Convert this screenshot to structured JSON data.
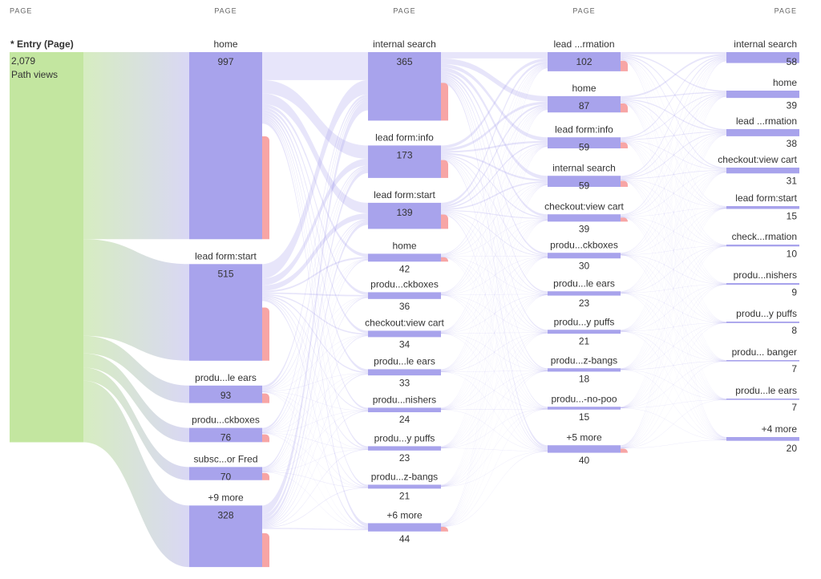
{
  "chart_data": {
    "type": "flow",
    "entry": {
      "header": "PAGE",
      "label": "* Entry (Page)",
      "value": 2079,
      "value_label": "2,079",
      "unit": "Path views"
    },
    "columns": [
      {
        "header": "PAGE",
        "nodes": [
          {
            "label": "home",
            "value": 997
          },
          {
            "label": "lead form:start",
            "value": 515
          },
          {
            "label": "produ...le ears",
            "value": 93
          },
          {
            "label": "produ...ckboxes",
            "value": 76
          },
          {
            "label": "subsc...or Fred",
            "value": 70
          },
          {
            "label": "+9 more",
            "value": 328
          }
        ]
      },
      {
        "header": "PAGE",
        "nodes": [
          {
            "label": "internal search",
            "value": 365
          },
          {
            "label": "lead form:info",
            "value": 173
          },
          {
            "label": "lead form:start",
            "value": 139
          },
          {
            "label": "home",
            "value": 42
          },
          {
            "label": "produ...ckboxes",
            "value": 36
          },
          {
            "label": "checkout:view cart",
            "value": 34
          },
          {
            "label": "produ...le ears",
            "value": 33
          },
          {
            "label": "produ...nishers",
            "value": 24
          },
          {
            "label": "produ...y puffs",
            "value": 23
          },
          {
            "label": "produ...z-bangs",
            "value": 21
          },
          {
            "label": "+6 more",
            "value": 44
          }
        ]
      },
      {
        "header": "PAGE",
        "nodes": [
          {
            "label": "lead ...rmation",
            "value": 102
          },
          {
            "label": "home",
            "value": 87
          },
          {
            "label": "lead form:info",
            "value": 59
          },
          {
            "label": "internal search",
            "value": 59
          },
          {
            "label": "checkout:view cart",
            "value": 39
          },
          {
            "label": "produ...ckboxes",
            "value": 30
          },
          {
            "label": "produ...le ears",
            "value": 23
          },
          {
            "label": "produ...y puffs",
            "value": 21
          },
          {
            "label": "produ...z-bangs",
            "value": 18
          },
          {
            "label": "produ...-no-poo",
            "value": 15
          },
          {
            "label": "+5 more",
            "value": 40
          }
        ]
      },
      {
        "header": "PAGE",
        "nodes": [
          {
            "label": "internal search",
            "value": 58
          },
          {
            "label": "home",
            "value": 39
          },
          {
            "label": "lead ...rmation",
            "value": 38
          },
          {
            "label": "checkout:view cart",
            "value": 31
          },
          {
            "label": "lead form:start",
            "value": 15
          },
          {
            "label": "check...rmation",
            "value": 10
          },
          {
            "label": "produ...nishers",
            "value": 9
          },
          {
            "label": "produ...y puffs",
            "value": 8
          },
          {
            "label": "produ... banger",
            "value": 7
          },
          {
            "label": "produ...le ears",
            "value": 7
          },
          {
            "label": "+4 more",
            "value": 20
          }
        ]
      }
    ]
  }
}
